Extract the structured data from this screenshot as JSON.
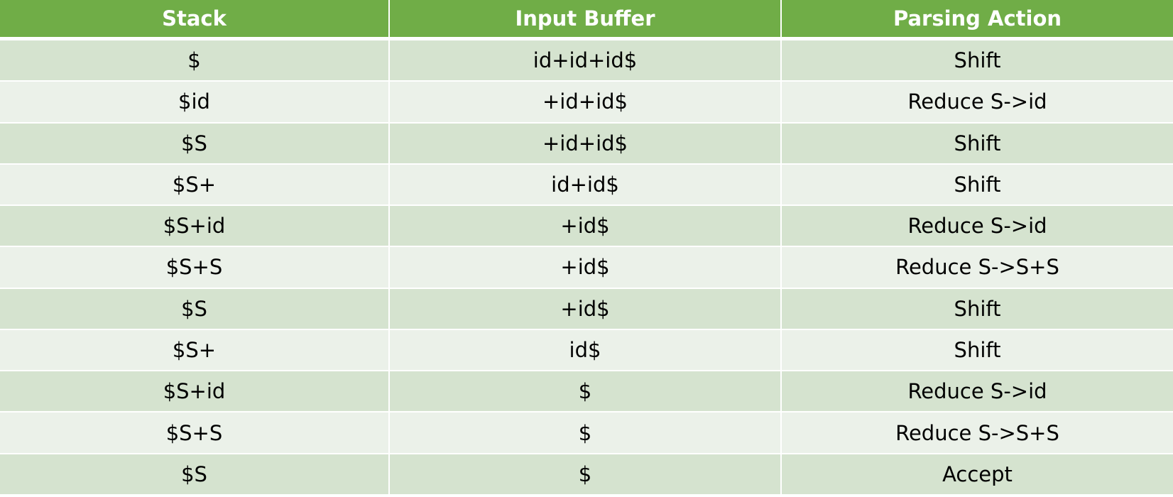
{
  "table": {
    "headers": [
      "Stack",
      "Input Buffer",
      "Parsing Action"
    ],
    "rows": [
      [
        "$",
        "id+id+id$",
        "Shift"
      ],
      [
        "$id",
        "+id+id$",
        "Reduce S->id"
      ],
      [
        "$S",
        "+id+id$",
        "Shift"
      ],
      [
        "$S+",
        "id+id$",
        "Shift"
      ],
      [
        "$S+id",
        "+id$",
        "Reduce S->id"
      ],
      [
        "$S+S",
        "+id$",
        "Reduce S->S+S"
      ],
      [
        "$S",
        "+id$",
        "Shift"
      ],
      [
        "$S+",
        "id$",
        "Shift"
      ],
      [
        "$S+id",
        "$",
        "Reduce S->id"
      ],
      [
        "$S+S",
        "$",
        "Reduce S->S+S"
      ],
      [
        "$S",
        "$",
        "Accept"
      ]
    ]
  },
  "colors": {
    "header_bg": "#70ad47",
    "row_dark": "#d5e3cf",
    "row_light": "#ebf1e9",
    "header_text": "#ffffff",
    "body_text": "#000000"
  }
}
